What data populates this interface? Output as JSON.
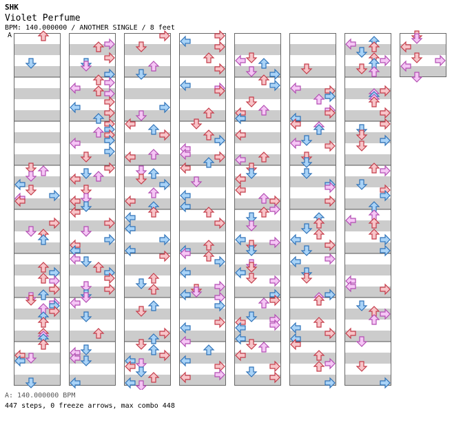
{
  "header": {
    "artist": "SHK",
    "title": "Violet Perfume",
    "bpm_line": "BPM: 140.000000 / ANOTHER SINGLE / 8 feet",
    "bpm_marker": "A"
  },
  "footer": {
    "bpm_legend": "A: 140.000000 BPM",
    "stats": "447 steps, 0 freeze arrows, max combo 448"
  },
  "colors": {
    "red_fill": "#f7c4c8",
    "red_stroke": "#c43a48",
    "blue_fill": "#a9d3f7",
    "blue_stroke": "#2e72b8",
    "pink_fill": "#f5c6f5",
    "pink_stroke": "#b24cb2",
    "stripe": "#cccccc"
  },
  "chart_data": {
    "type": "table",
    "lanes": [
      "left",
      "down",
      "up",
      "right"
    ],
    "measures_per_column": 8,
    "columns": 8,
    "last_column_measures": 1,
    "note_types": [
      "4th",
      "8th",
      "16th"
    ]
  }
}
